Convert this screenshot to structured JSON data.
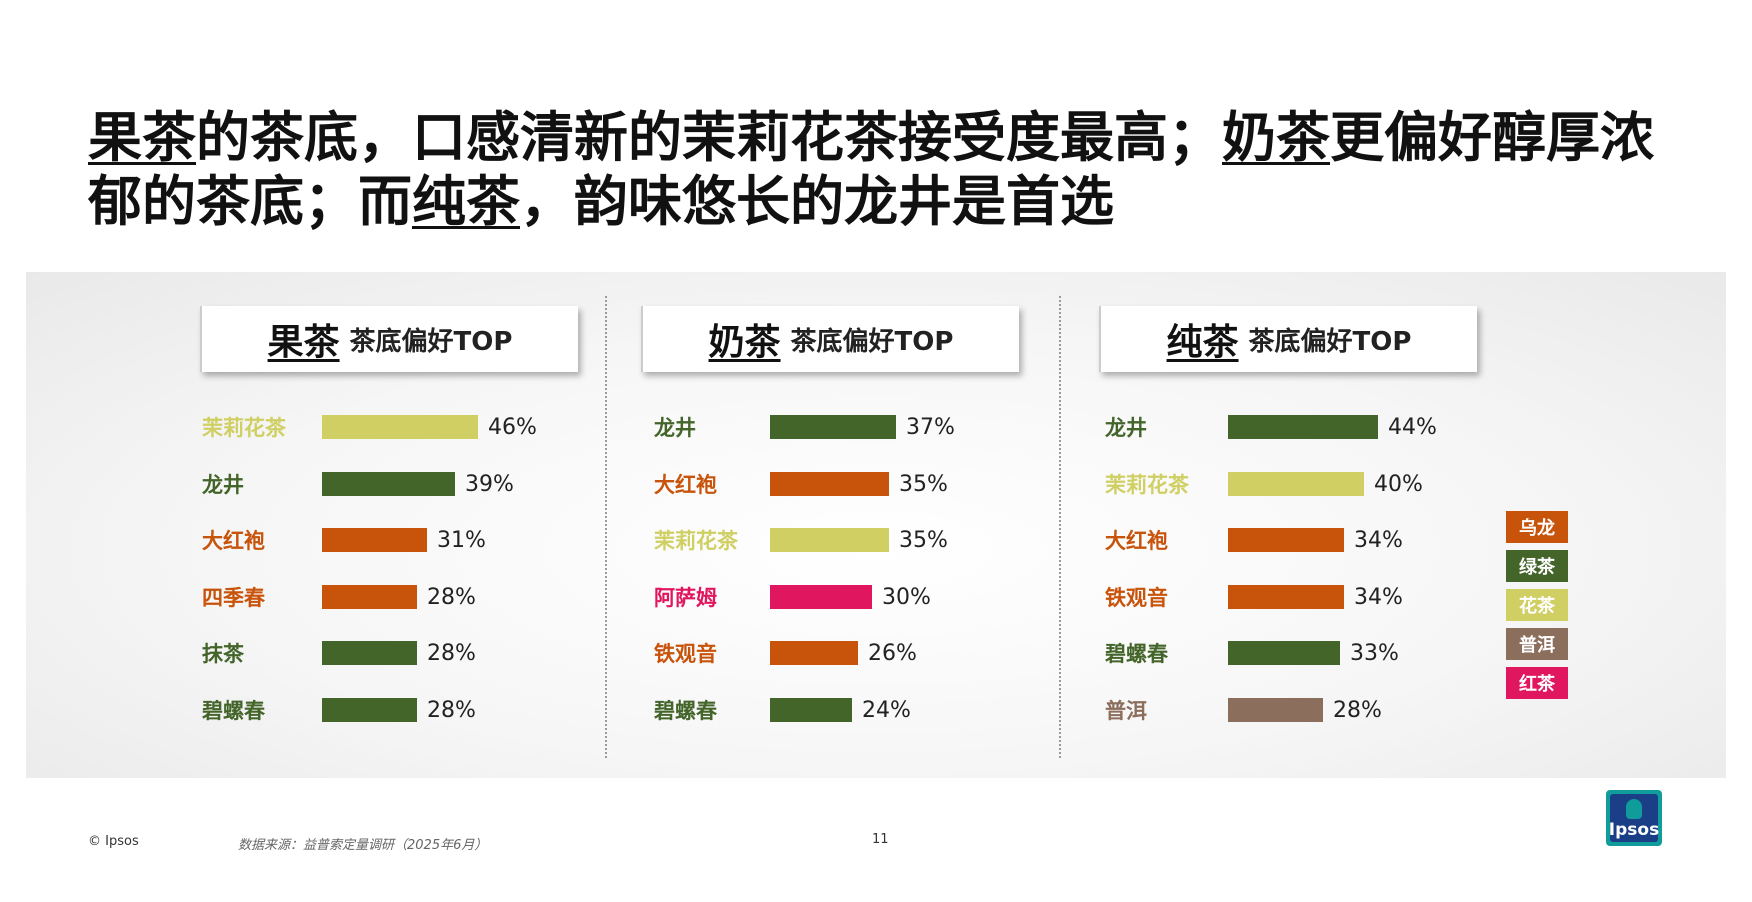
{
  "title": {
    "seg1_u": "果茶",
    "seg2": "的茶底，口感清新的茉莉花茶接受度最高；",
    "seg3_u": "奶茶",
    "seg4": "更偏好醇厚浓郁的茶底；而",
    "seg5_u": "纯茶",
    "seg6": "，韵味悠长的龙井是首选"
  },
  "colors": {
    "乌龙": "#c8530a",
    "绿茶": "#44652a",
    "花茶": "#cfcf64",
    "普洱": "#8c6e5c",
    "红茶": "#e0175f"
  },
  "legend": [
    "乌龙",
    "绿茶",
    "花茶",
    "普洱",
    "红茶"
  ],
  "chart_data": [
    {
      "type": "bar",
      "title": "果茶",
      "subtitle": "茶底偏好TOP",
      "categories": [
        "茉莉花茶",
        "龙井",
        "大红袍",
        "四季春",
        "抹茶",
        "碧螺春"
      ],
      "values": [
        46,
        39,
        31,
        28,
        28,
        28
      ],
      "groups": [
        "花茶",
        "绿茶",
        "乌龙",
        "乌龙",
        "绿茶",
        "绿茶"
      ],
      "value_labels": [
        "46%",
        "39%",
        "31%",
        "28%",
        "28%",
        "28%"
      ]
    },
    {
      "type": "bar",
      "title": "奶茶",
      "subtitle": "茶底偏好TOP",
      "categories": [
        "龙井",
        "大红袍",
        "茉莉花茶",
        "阿萨姆",
        "铁观音",
        "碧螺春"
      ],
      "values": [
        37,
        35,
        35,
        30,
        26,
        24
      ],
      "groups": [
        "绿茶",
        "乌龙",
        "花茶",
        "红茶",
        "乌龙",
        "绿茶"
      ],
      "value_labels": [
        "37%",
        "35%",
        "35%",
        "30%",
        "26%",
        "24%"
      ]
    },
    {
      "type": "bar",
      "title": "纯茶",
      "subtitle": "茶底偏好TOP",
      "categories": [
        "龙井",
        "茉莉花茶",
        "大红袍",
        "铁观音",
        "碧螺春",
        "普洱"
      ],
      "values": [
        44,
        40,
        34,
        34,
        33,
        28
      ],
      "groups": [
        "绿茶",
        "花茶",
        "乌龙",
        "乌龙",
        "绿茶",
        "普洱"
      ],
      "value_labels": [
        "44%",
        "40%",
        "34%",
        "34%",
        "33%",
        "28%"
      ]
    }
  ],
  "footer": {
    "copyright": "© Ipsos",
    "source": "数据来源：益普索定量调研（2025年6月）",
    "page": "11",
    "logo_text": "Ipsos"
  }
}
